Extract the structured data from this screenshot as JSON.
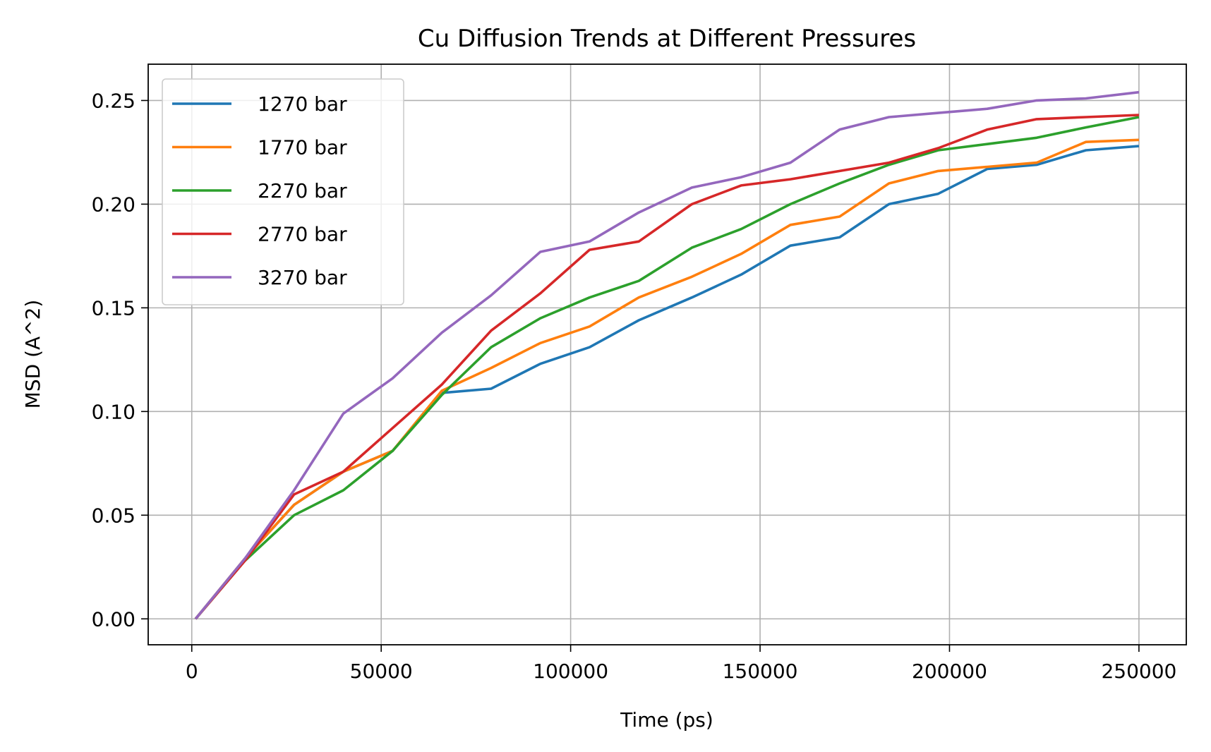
{
  "chart_data": {
    "type": "line",
    "title": "Cu Diffusion Trends at Different Pressures",
    "xlabel": "Time (ps)",
    "ylabel": "MSD (A^2)",
    "xlim": [
      -11500,
      262500
    ],
    "ylim": [
      -0.0125,
      0.2675
    ],
    "x_ticks": [
      0,
      50000,
      100000,
      150000,
      200000,
      250000
    ],
    "x_tick_labels": [
      "0",
      "50000",
      "100000",
      "150000",
      "200000",
      "250000"
    ],
    "y_ticks": [
      0.0,
      0.05,
      0.1,
      0.15,
      0.2,
      0.25
    ],
    "y_tick_labels": [
      "0.00",
      "0.05",
      "0.10",
      "0.15",
      "0.20",
      "0.25"
    ],
    "grid": true,
    "legend_position": "upper-left",
    "x": [
      1000,
      14000,
      27000,
      40000,
      53000,
      66000,
      79000,
      92000,
      105000,
      118000,
      132000,
      145000,
      158000,
      171000,
      184000,
      197000,
      210000,
      223000,
      236000,
      250000
    ],
    "series": [
      {
        "name": "1270 bar",
        "color": "#1f77b4",
        "values": [
          0.0,
          0.029,
          0.055,
          0.071,
          0.081,
          0.109,
          0.111,
          0.123,
          0.131,
          0.144,
          0.155,
          0.166,
          0.18,
          0.184,
          0.2,
          0.205,
          0.217,
          0.219,
          0.226,
          0.228
        ]
      },
      {
        "name": "1770 bar",
        "color": "#ff7f0e",
        "values": [
          0.0,
          0.029,
          0.055,
          0.071,
          0.081,
          0.11,
          0.121,
          0.133,
          0.141,
          0.155,
          0.165,
          0.176,
          0.19,
          0.194,
          0.21,
          0.216,
          0.218,
          0.22,
          0.23,
          0.231
        ]
      },
      {
        "name": "2270 bar",
        "color": "#2ca02c",
        "values": [
          0.0,
          0.028,
          0.05,
          0.062,
          0.081,
          0.108,
          0.131,
          0.145,
          0.155,
          0.163,
          0.179,
          0.188,
          0.2,
          0.21,
          0.219,
          0.226,
          0.229,
          0.232,
          0.237,
          0.242
        ]
      },
      {
        "name": "2770 bar",
        "color": "#d62728",
        "values": [
          0.0,
          0.028,
          0.06,
          0.071,
          0.092,
          0.113,
          0.139,
          0.157,
          0.178,
          0.182,
          0.2,
          0.209,
          0.212,
          0.216,
          0.22,
          0.227,
          0.236,
          0.241,
          0.242,
          0.243
        ]
      },
      {
        "name": "3270 bar",
        "color": "#9467bd",
        "values": [
          0.0,
          0.029,
          0.062,
          0.099,
          0.116,
          0.138,
          0.156,
          0.177,
          0.182,
          0.196,
          0.208,
          0.213,
          0.22,
          0.236,
          0.242,
          0.244,
          0.246,
          0.25,
          0.251,
          0.254
        ]
      }
    ]
  }
}
